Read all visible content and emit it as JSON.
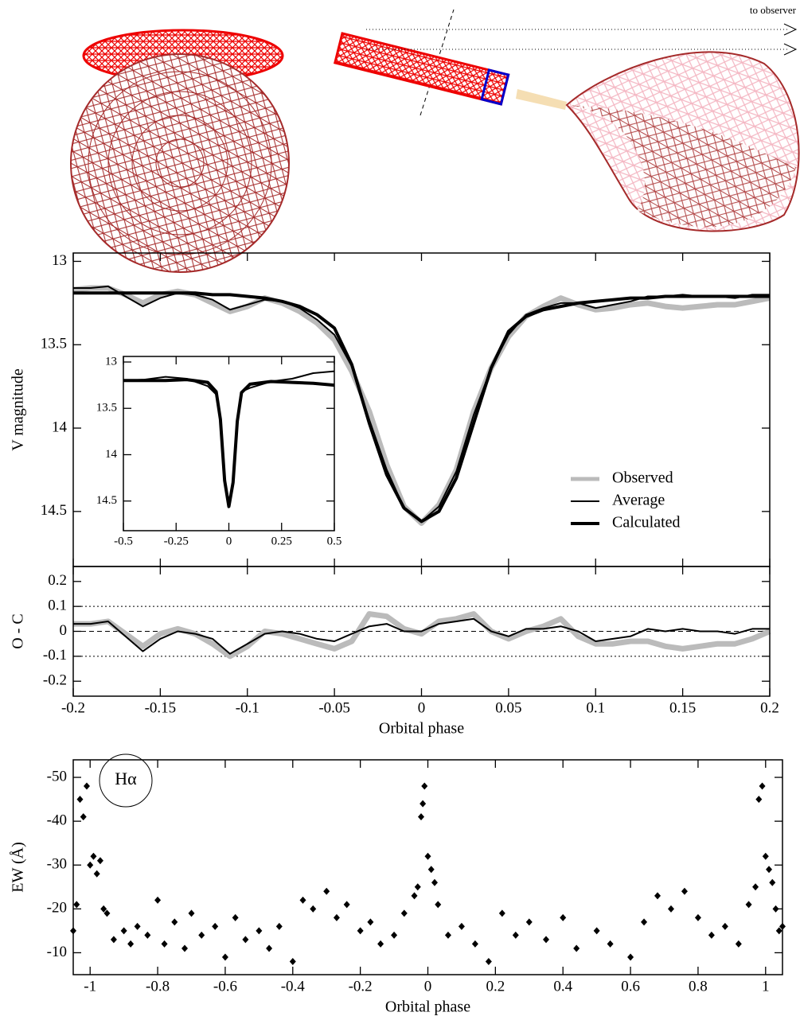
{
  "diagram": {
    "label": "to observer"
  },
  "chart_data": [
    {
      "type": "line",
      "ylabel": "V magnitude",
      "xlim": [
        -0.2,
        0.2
      ],
      "ylim": [
        12.95,
        14.83
      ],
      "y_inverted": true,
      "yticks": [
        13,
        13.5,
        14,
        14.5
      ],
      "legend": "lower right",
      "x": [
        -0.2,
        -0.19,
        -0.18,
        -0.17,
        -0.16,
        -0.15,
        -0.14,
        -0.13,
        -0.12,
        -0.11,
        -0.1,
        -0.09,
        -0.08,
        -0.07,
        -0.06,
        -0.05,
        -0.04,
        -0.03,
        -0.02,
        -0.01,
        0,
        0.01,
        0.02,
        0.03,
        0.04,
        0.05,
        0.06,
        0.07,
        0.08,
        0.09,
        0.1,
        0.11,
        0.12,
        0.13,
        0.14,
        0.15,
        0.16,
        0.17,
        0.18,
        0.19,
        0.2
      ],
      "series": [
        {
          "name": "Observed",
          "color": "#bbbbbb",
          "line_width": 7,
          "values": [
            13.17,
            13.16,
            13.16,
            13.2,
            13.25,
            13.2,
            13.18,
            13.2,
            13.25,
            13.3,
            13.27,
            13.22,
            13.25,
            13.3,
            13.37,
            13.47,
            13.66,
            13.9,
            14.22,
            14.47,
            14.57,
            14.46,
            14.25,
            13.9,
            13.64,
            13.45,
            13.33,
            13.27,
            13.22,
            13.26,
            13.29,
            13.28,
            13.26,
            13.25,
            13.27,
            13.28,
            13.27,
            13.26,
            13.26,
            13.24,
            13.22
          ]
        },
        {
          "name": "Average",
          "color": "#000000",
          "line_width": 2,
          "values": [
            13.16,
            13.16,
            13.15,
            13.21,
            13.27,
            13.22,
            13.19,
            13.2,
            13.23,
            13.29,
            13.26,
            13.23,
            13.24,
            13.28,
            13.35,
            13.44,
            13.63,
            13.95,
            14.25,
            14.48,
            14.56,
            14.47,
            14.26,
            13.92,
            13.64,
            13.44,
            13.32,
            13.28,
            13.25,
            13.25,
            13.28,
            13.26,
            13.24,
            13.21,
            13.21,
            13.2,
            13.21,
            13.21,
            13.22,
            13.2,
            13.2
          ]
        },
        {
          "name": "Calculated",
          "color": "#000000",
          "line_width": 4,
          "values": [
            13.19,
            13.19,
            13.19,
            13.19,
            13.19,
            13.19,
            13.19,
            13.19,
            13.2,
            13.2,
            13.21,
            13.22,
            13.24,
            13.27,
            13.32,
            13.4,
            13.62,
            13.97,
            14.28,
            14.48,
            14.56,
            14.5,
            14.3,
            13.97,
            13.64,
            13.42,
            13.33,
            13.29,
            13.27,
            13.25,
            13.24,
            13.23,
            13.22,
            13.22,
            13.21,
            13.21,
            13.21,
            13.21,
            13.21,
            13.21,
            13.21
          ]
        }
      ]
    },
    {
      "type": "line",
      "xlim": [
        -0.5,
        0.5
      ],
      "ylim": [
        12.94,
        14.82
      ],
      "y_inverted": true,
      "xticks": [
        -0.5,
        -0.25,
        0,
        0.25,
        0.5
      ],
      "yticks": [
        13,
        13.5,
        14,
        14.5
      ],
      "x": [
        -0.5,
        -0.4,
        -0.3,
        -0.2,
        -0.1,
        -0.06,
        -0.04,
        -0.02,
        0,
        0.02,
        0.04,
        0.06,
        0.1,
        0.2,
        0.3,
        0.4,
        0.5
      ],
      "series": [
        {
          "color": "#000000",
          "line_width": 2,
          "values": [
            13.2,
            13.19,
            13.16,
            13.18,
            13.26,
            13.35,
            13.63,
            14.25,
            14.56,
            14.26,
            13.64,
            13.32,
            13.28,
            13.21,
            13.18,
            13.12,
            13.1
          ]
        },
        {
          "color": "#000000",
          "line_width": 4,
          "values": [
            13.2,
            13.2,
            13.2,
            13.19,
            13.22,
            13.32,
            13.62,
            14.28,
            14.56,
            14.3,
            13.64,
            13.33,
            13.24,
            13.21,
            13.22,
            13.23,
            13.25
          ]
        }
      ]
    },
    {
      "type": "line",
      "ylabel": "O - C",
      "xlabel": "Orbital phase",
      "xlim": [
        -0.2,
        0.2
      ],
      "ylim": [
        -0.26,
        0.26
      ],
      "xticks": [
        -0.2,
        -0.15,
        -0.1,
        -0.05,
        0,
        0.05,
        0.1,
        0.15,
        0.2
      ],
      "yticks": [
        -0.2,
        -0.1,
        0,
        0.1,
        0.2
      ],
      "reference_lines": [
        {
          "value": 0.1,
          "dash": "dotted"
        },
        {
          "value": 0,
          "dash": "dashed"
        },
        {
          "value": -0.1,
          "dash": "dotted"
        }
      ],
      "x": [
        -0.2,
        -0.19,
        -0.18,
        -0.17,
        -0.16,
        -0.15,
        -0.14,
        -0.13,
        -0.12,
        -0.11,
        -0.1,
        -0.09,
        -0.08,
        -0.07,
        -0.06,
        -0.05,
        -0.04,
        -0.03,
        -0.02,
        -0.01,
        0,
        0.01,
        0.02,
        0.03,
        0.04,
        0.05,
        0.06,
        0.07,
        0.08,
        0.09,
        0.1,
        0.11,
        0.12,
        0.13,
        0.14,
        0.15,
        0.16,
        0.17,
        0.18,
        0.19,
        0.2
      ],
      "series": [
        {
          "color": "#bbbbbb",
          "line_width": 7,
          "values": [
            0.03,
            0.03,
            0.04,
            -0.01,
            -0.06,
            -0.01,
            0.01,
            -0.01,
            -0.05,
            -0.1,
            -0.06,
            0,
            -0.01,
            -0.03,
            -0.05,
            -0.07,
            -0.04,
            0.07,
            0.06,
            0.01,
            -0.01,
            0.04,
            0.05,
            0.07,
            0,
            -0.03,
            0,
            0.02,
            0.05,
            -0.02,
            -0.05,
            -0.05,
            -0.04,
            -0.04,
            -0.06,
            -0.07,
            -0.06,
            -0.05,
            -0.05,
            -0.03,
            0
          ]
        },
        {
          "color": "#000000",
          "line_width": 2,
          "values": [
            0.03,
            0.03,
            0.04,
            -0.02,
            -0.08,
            -0.03,
            0,
            -0.01,
            -0.03,
            -0.09,
            -0.05,
            -0.01,
            0,
            -0.01,
            -0.03,
            -0.04,
            -0.01,
            0.02,
            0.03,
            0,
            0,
            0.03,
            0.04,
            0.05,
            0,
            -0.02,
            0.01,
            0.01,
            0.02,
            0,
            -0.04,
            -0.03,
            -0.02,
            0.01,
            0,
            0.01,
            0,
            0,
            -0.01,
            0.01,
            0.01
          ]
        }
      ]
    },
    {
      "type": "scatter",
      "ylabel": "EW (Å)",
      "xlabel": "Orbital phase",
      "annotation": "Hα",
      "color": "#000000",
      "xlim": [
        -1.05,
        1.05
      ],
      "ylim": [
        -54,
        -5
      ],
      "y_inverted": true,
      "xticks": [
        -1,
        -0.8,
        -0.6,
        -0.4,
        -0.2,
        0,
        0.2,
        0.4,
        0.6,
        0.8,
        1
      ],
      "yticks": [
        -50,
        -40,
        -30,
        -20,
        -10
      ],
      "x": [
        -1.05,
        -1.04,
        -1.03,
        -1.02,
        -1.01,
        -1.0,
        -0.99,
        -0.98,
        -0.97,
        -0.96,
        -0.95,
        -0.93,
        -0.9,
        -0.88,
        -0.86,
        -0.83,
        -0.8,
        -0.78,
        -0.75,
        -0.72,
        -0.7,
        -0.67,
        -0.63,
        -0.6,
        -0.57,
        -0.54,
        -0.5,
        -0.47,
        -0.44,
        -0.4,
        -0.37,
        -0.34,
        -0.3,
        -0.27,
        -0.24,
        -0.2,
        -0.17,
        -0.14,
        -0.1,
        -0.07,
        -0.04,
        -0.03,
        -0.02,
        -0.015,
        -0.01,
        0,
        0.01,
        0.02,
        0.03,
        0.06,
        0.1,
        0.14,
        0.18,
        0.22,
        0.26,
        0.3,
        0.35,
        0.4,
        0.44,
        0.5,
        0.54,
        0.6,
        0.64,
        0.68,
        0.72,
        0.76,
        0.8,
        0.84,
        0.88,
        0.92,
        0.95,
        0.97,
        0.98,
        0.99,
        1.0,
        1.01,
        1.02,
        1.03,
        1.04,
        1.05
      ],
      "values": [
        -15,
        -21,
        -45,
        -41,
        -48,
        -30,
        -32,
        -28,
        -31,
        -20,
        -19,
        -13,
        -15,
        -12,
        -16,
        -14,
        -22,
        -12,
        -17,
        -11,
        -19,
        -14,
        -16,
        -9,
        -18,
        -13,
        -15,
        -11,
        -16,
        -8,
        -22,
        -20,
        -24,
        -18,
        -21,
        -15,
        -17,
        -12,
        -14,
        -19,
        -23,
        -25,
        -41,
        -44,
        -48,
        -32,
        -29,
        -26,
        -21,
        -14,
        -16,
        -12,
        -8,
        -19,
        -14,
        -17,
        -13,
        -18,
        -11,
        -15,
        -12,
        -9,
        -17,
        -23,
        -20,
        -24,
        -18,
        -14,
        -16,
        -12,
        -21,
        -25,
        -45,
        -48,
        -32,
        -29,
        -26,
        -20,
        -15,
        -16
      ]
    }
  ]
}
